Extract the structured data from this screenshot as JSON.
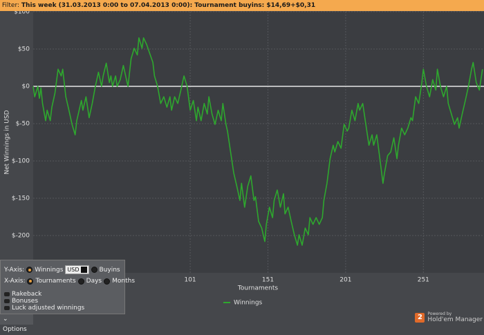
{
  "filter": {
    "label": "Filter:",
    "text": "This week (31.03.2013 0:00 to 07.04.2013 0:00): Tournament buyins: $14,69+$0,31"
  },
  "chart_data": {
    "type": "line",
    "x_label": "Tournaments",
    "y_label": "Net Winnings in USD",
    "x": [
      0,
      1,
      3,
      4,
      5,
      6,
      8,
      9,
      11,
      12,
      14,
      16,
      18,
      19,
      21,
      23,
      25,
      27,
      28,
      31,
      32,
      34,
      36,
      38,
      40,
      42,
      44,
      45,
      47,
      49,
      50,
      51,
      53,
      54,
      56,
      58,
      60,
      61,
      63,
      65,
      67,
      68,
      70,
      71,
      73,
      75,
      77,
      78,
      80,
      82,
      84,
      86,
      88,
      89,
      91,
      93,
      95,
      97,
      99,
      101,
      103,
      105,
      106,
      108,
      110,
      112,
      113,
      115,
      117,
      119,
      121,
      122,
      124,
      125,
      127,
      129,
      131,
      133,
      134,
      136,
      138,
      140,
      142,
      143,
      145,
      147,
      149,
      150,
      152,
      154,
      155,
      157,
      159,
      161,
      162,
      164,
      166,
      168,
      170,
      171,
      173,
      175,
      177,
      178,
      180,
      182,
      184,
      186,
      187,
      189,
      191,
      193,
      194,
      196,
      198,
      200,
      202,
      203,
      205,
      207,
      209,
      210,
      212,
      214,
      216,
      218,
      219,
      221,
      223,
      225,
      226,
      228,
      230,
      232,
      234,
      235,
      237,
      239,
      241,
      243,
      244,
      246,
      248,
      250,
      251,
      253,
      255,
      257,
      259,
      260,
      262,
      264,
      266,
      267,
      269,
      271,
      273,
      274,
      276,
      278,
      280,
      282,
      283,
      285,
      287,
      289
    ],
    "series": [
      {
        "name": "Winnings",
        "color": "#2ea82e",
        "values": [
          0,
          -14,
          0,
          -16,
          -2,
          -23,
          -46,
          -32,
          -46,
          -28,
          -9,
          23,
          14,
          23,
          -14,
          -32,
          -51,
          -65,
          -46,
          -19,
          -32,
          -14,
          -42,
          -23,
          0,
          19,
          0,
          14,
          31,
          5,
          14,
          0,
          14,
          0,
          9,
          28,
          9,
          0,
          37,
          51,
          42,
          65,
          51,
          65,
          56,
          44,
          32,
          14,
          0,
          -23,
          -14,
          -28,
          -14,
          -32,
          -14,
          -23,
          -5,
          14,
          0,
          -32,
          -19,
          -46,
          -28,
          -46,
          -23,
          -37,
          -14,
          -37,
          -51,
          -32,
          -46,
          -23,
          -51,
          -60,
          -88,
          -116,
          -134,
          -153,
          -130,
          -162,
          -134,
          -120,
          -153,
          -148,
          -181,
          -190,
          -208,
          -185,
          -162,
          -176,
          -153,
          -139,
          -162,
          -144,
          -171,
          -162,
          -181,
          -199,
          -213,
          -199,
          -213,
          -190,
          -199,
          -176,
          -185,
          -176,
          -185,
          -176,
          -153,
          -130,
          -97,
          -79,
          -88,
          -74,
          -83,
          -51,
          -60,
          -56,
          -32,
          -46,
          -23,
          -32,
          -23,
          -51,
          -79,
          -65,
          -79,
          -65,
          -97,
          -130,
          -116,
          -93,
          -88,
          -69,
          -97,
          -79,
          -56,
          -65,
          -56,
          -42,
          -46,
          -14,
          -23,
          5,
          23,
          0,
          -14,
          9,
          -5,
          23,
          0,
          -14,
          0,
          -23,
          -37,
          -51,
          -42,
          -56,
          -37,
          -19,
          0,
          23,
          32,
          5,
          -5,
          23
        ]
      }
    ],
    "xlim": [
      0,
      290
    ],
    "ylim": [
      -250,
      100
    ],
    "xticks": [
      101,
      151,
      201,
      251
    ],
    "yticks": [
      {
        "value": 100,
        "label": "$100"
      },
      {
        "value": 50,
        "label": "$50"
      },
      {
        "value": 0,
        "label": "$0"
      },
      {
        "value": -50,
        "label": "$-50"
      },
      {
        "value": -100,
        "label": "$-100"
      },
      {
        "value": -150,
        "label": "$-150"
      },
      {
        "value": -200,
        "label": "$-200"
      }
    ],
    "grid": true,
    "legend": "bottom"
  },
  "options_panel": {
    "y_axis": {
      "label": "Y-Axis:",
      "options": [
        {
          "text": "Winnings",
          "selected": true
        },
        {
          "text": "Buyins",
          "selected": false
        }
      ],
      "currency": "USD"
    },
    "x_axis": {
      "label": "X-Axis:",
      "options": [
        {
          "text": "Tournaments",
          "selected": true
        },
        {
          "text": "Days",
          "selected": false
        },
        {
          "text": "Months",
          "selected": false
        }
      ]
    },
    "checkboxes": [
      "Rakeback",
      "Bonuses",
      "Luck adjusted winnings"
    ]
  },
  "options_button": "Options",
  "branding": {
    "badge": "2",
    "powered_by": "Powered by",
    "product": "Hold'em Manager"
  }
}
